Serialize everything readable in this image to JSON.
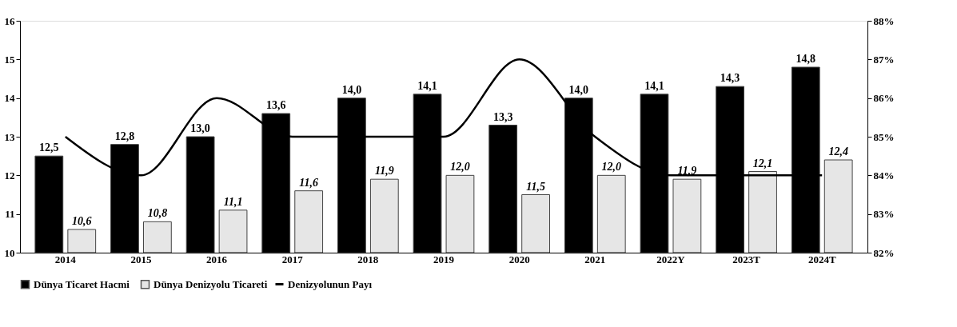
{
  "chart_data": {
    "type": "bar",
    "categories": [
      "2014",
      "2015",
      "2016",
      "2017",
      "2018",
      "2019",
      "2020",
      "2021",
      "2022Y",
      "2023T",
      "2024T"
    ],
    "series": [
      {
        "name": "Dünya Ticaret Hacmi",
        "color": "#000000",
        "values": [
          12.5,
          12.8,
          13.0,
          13.6,
          14.0,
          14.1,
          13.3,
          14.0,
          14.1,
          14.3,
          14.8
        ],
        "value_labels": [
          "12,5",
          "12,8",
          "13,0",
          "13,6",
          "14,0",
          "14,1",
          "13,3",
          "14,0",
          "14,1",
          "14,3",
          "14,8"
        ]
      },
      {
        "name": "Dünya Denizyolu Ticareti",
        "color": "#e6e6e6",
        "values": [
          10.6,
          10.8,
          11.1,
          11.6,
          11.9,
          12.0,
          11.5,
          12.0,
          11.9,
          12.1,
          12.4
        ],
        "value_labels": [
          "10,6",
          "10,8",
          "11,1",
          "11,6",
          "11,9",
          "12,0",
          "11,5",
          "12,0",
          "11,9",
          "12,1",
          "12,4"
        ]
      },
      {
        "name": "Denizyolunun Payı",
        "type": "line",
        "axis": "y2",
        "color": "#000000",
        "values": [
          85,
          84,
          86,
          85,
          85,
          85,
          87,
          85,
          84,
          84,
          84
        ]
      }
    ],
    "ylim": [
      10,
      16
    ],
    "yticks": [
      10,
      11,
      12,
      13,
      14,
      15,
      16
    ],
    "y2lim": [
      82,
      88
    ],
    "y2ticks": [
      {
        "value": 82,
        "label": "82%"
      },
      {
        "value": 83,
        "label": "83%"
      },
      {
        "value": 84,
        "label": "84%"
      },
      {
        "value": 85,
        "label": "85%"
      },
      {
        "value": 86,
        "label": "86%"
      },
      {
        "value": 87,
        "label": "87%"
      },
      {
        "value": 88,
        "label": "88%"
      }
    ],
    "grid": false,
    "legend": "bottom",
    "line_style": "solid",
    "marker": "none"
  }
}
